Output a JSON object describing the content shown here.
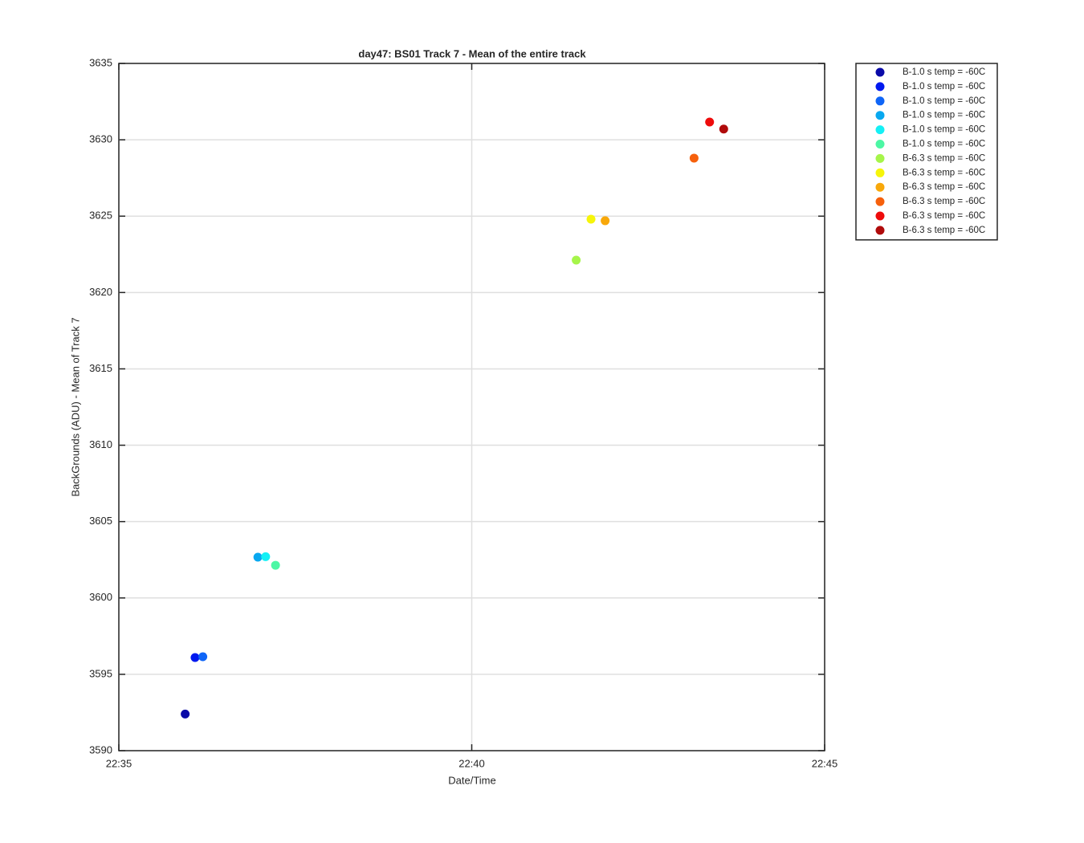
{
  "chart_data": {
    "type": "scatter",
    "title": "day47: BS01  Track 7 - Mean of the entire track",
    "x_label": "Date/Time",
    "y_label": "BackGrounds (ADU) - Mean of Track 7",
    "xlim": [
      1355,
      1365
    ],
    "xticks": [
      {
        "value": 1355,
        "label": "22:35"
      },
      {
        "value": 1360,
        "label": "22:40"
      },
      {
        "value": 1365,
        "label": "22:45"
      }
    ],
    "ylim": [
      3590,
      3635
    ],
    "yticks": [
      3590,
      3595,
      3600,
      3605,
      3610,
      3615,
      3620,
      3625,
      3630,
      3635
    ],
    "grid": true,
    "legend": "outside-top-right",
    "series": [
      {
        "name": "B-1.0 s temp = -60C",
        "color": "#0a0aa8",
        "x": [
          1355.94
        ],
        "values": [
          3592.4
        ]
      },
      {
        "name": "B-1.0 s temp = -60C",
        "color": "#0019ef",
        "x": [
          1356.08
        ],
        "values": [
          3596.1
        ]
      },
      {
        "name": "B-1.0 s temp = -60C",
        "color": "#0f65f7",
        "x": [
          1356.19
        ],
        "values": [
          3596.15
        ]
      },
      {
        "name": "B-1.0 s temp = -60C",
        "color": "#08a8f0",
        "x": [
          1356.97
        ],
        "values": [
          3602.67
        ]
      },
      {
        "name": "B-1.0 s temp = -60C",
        "color": "#14f0f5",
        "x": [
          1357.08
        ],
        "values": [
          3602.7
        ]
      },
      {
        "name": "B-1.0 s temp = -60C",
        "color": "#4cf7a4",
        "x": [
          1357.22
        ],
        "values": [
          3602.14
        ]
      },
      {
        "name": "B-6.3 s temp = -60C",
        "color": "#a6f54a",
        "x": [
          1361.48
        ],
        "values": [
          3622.12
        ]
      },
      {
        "name": "B-6.3 s temp = -60C",
        "color": "#f6f50a",
        "x": [
          1361.69
        ],
        "values": [
          3624.8
        ]
      },
      {
        "name": "B-6.3 s temp = -60C",
        "color": "#f8a80a",
        "x": [
          1361.89
        ],
        "values": [
          3624.7
        ]
      },
      {
        "name": "B-6.3 s temp = -60C",
        "color": "#f6600c",
        "x": [
          1363.15
        ],
        "values": [
          3628.8
        ]
      },
      {
        "name": "B-6.3 s temp = -60C",
        "color": "#ee0b0b",
        "x": [
          1363.37
        ],
        "values": [
          3631.16
        ]
      },
      {
        "name": "B-6.3 s temp = -60C",
        "color": "#b00b0b",
        "x": [
          1363.57
        ],
        "values": [
          3630.7
        ]
      }
    ]
  }
}
